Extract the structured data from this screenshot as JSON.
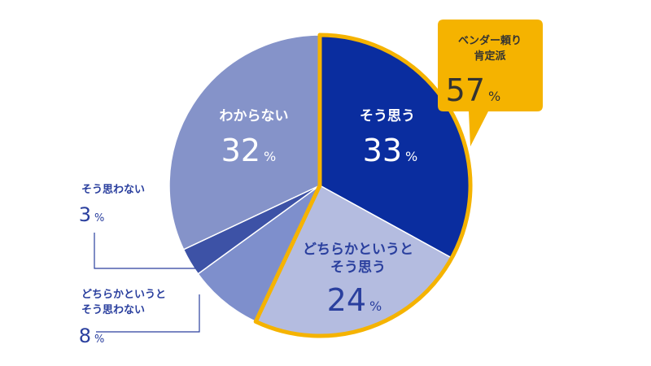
{
  "chart_data": {
    "type": "pie",
    "slices": [
      {
        "label": "そう思う",
        "value": 33,
        "value_text": "33",
        "color": "#0a2d9f",
        "text_color": "#ffffff"
      },
      {
        "label_lines": [
          "どちらかというと",
          "そう思う"
        ],
        "value": 24,
        "value_text": "24",
        "color": "#b4bce0",
        "text_color": "#2a3f9e"
      },
      {
        "label_lines": [
          "どちらかというと",
          "そう思わない"
        ],
        "value": 8,
        "value_text": "8",
        "color": "#7e8fcc",
        "text_color": "#2a3f9e"
      },
      {
        "label": "そう思わない",
        "value": 3,
        "value_text": "3",
        "color": "#3d52a6",
        "text_color": "#2a3f9e"
      },
      {
        "label": "わからない",
        "value": 32,
        "value_text": "32",
        "color": "#8593c9",
        "text_color": "#ffffff"
      }
    ],
    "unit": "%",
    "callout": {
      "label_lines": [
        "ベンダー頼り",
        "肯定派"
      ],
      "value_text": "57",
      "unit": "%",
      "bg_color": "#f5b300",
      "highlight_color": "#f5b300"
    }
  }
}
